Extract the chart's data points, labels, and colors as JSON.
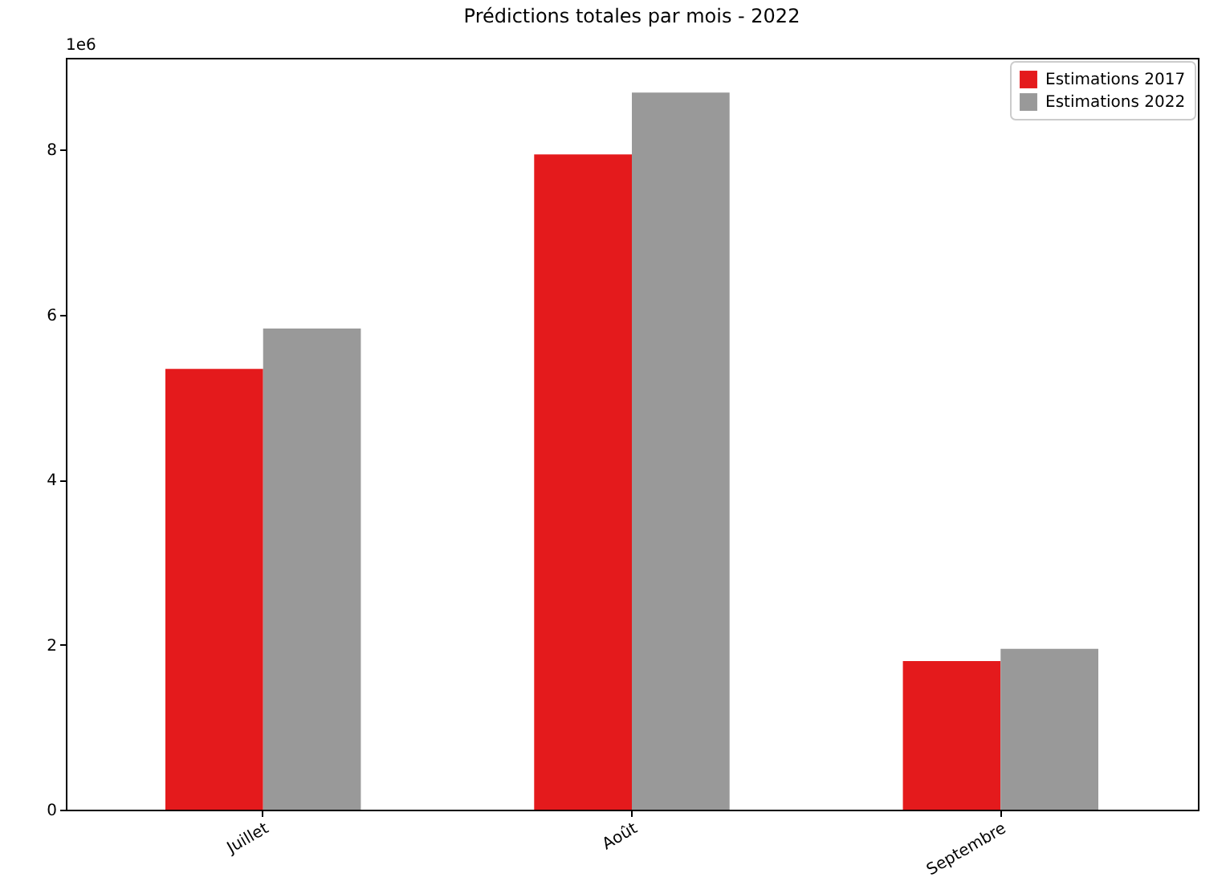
{
  "chart_data": {
    "type": "bar",
    "title": "Prédictions totales par mois - 2022",
    "categories": [
      "Juillet",
      "Août",
      "Septembre"
    ],
    "series": [
      {
        "name": "Estimations 2017",
        "color": "#e41a1c",
        "values": [
          5.34,
          7.94,
          1.8
        ]
      },
      {
        "name": "Estimations 2022",
        "color": "#999999",
        "values": [
          5.83,
          8.69,
          1.95
        ]
      }
    ],
    "ylim": [
      0,
      9.11
    ],
    "yticks": [
      0,
      2,
      4,
      6,
      8
    ],
    "annotations": [
      "1e6"
    ],
    "legend": "top right",
    "grid": false
  }
}
